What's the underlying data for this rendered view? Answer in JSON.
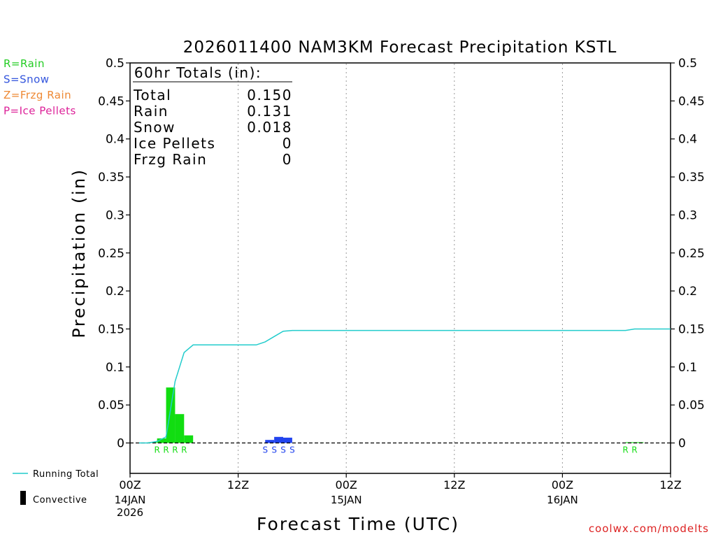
{
  "chart_data": {
    "type": "bar",
    "title": "2026011400 NAM3KM Forecast Precipitation KSTL",
    "xlabel": "Forecast Time (UTC)",
    "ylabel": "Precipitation (in)",
    "ylim": [
      -0.04,
      0.5
    ],
    "xlim_hours": [
      0,
      60
    ],
    "y_ticks": [
      0,
      0.05,
      0.1,
      0.15,
      0.2,
      0.25,
      0.3,
      0.35,
      0.4,
      0.45,
      0.5
    ],
    "y_tick_labels": [
      "0",
      "0.05",
      "0.1",
      "0.15",
      "0.2",
      "0.25",
      "0.3",
      "0.35",
      "0.4",
      "0.45",
      "0.5"
    ],
    "x_ticks": [
      {
        "hour": 0,
        "label": "00Z",
        "sub": [
          "14JAN",
          "2026"
        ]
      },
      {
        "hour": 12,
        "label": "12Z",
        "sub": []
      },
      {
        "hour": 24,
        "label": "00Z",
        "sub": [
          "15JAN"
        ]
      },
      {
        "hour": 36,
        "label": "12Z",
        "sub": []
      },
      {
        "hour": 48,
        "label": "00Z",
        "sub": [
          "16JAN"
        ]
      },
      {
        "hour": 60,
        "label": "12Z",
        "sub": []
      }
    ],
    "totals": {
      "header": "60hr Totals (in):",
      "rows": [
        {
          "label": "Total",
          "value": "0.150"
        },
        {
          "label": "Rain",
          "value": "0.131"
        },
        {
          "label": "Snow",
          "value": "0.018"
        },
        {
          "label": "Ice Pellets",
          "value": "0"
        },
        {
          "label": "Frzg Rain",
          "value": "0"
        }
      ]
    },
    "type_legend": [
      {
        "text": "R=Rain",
        "color": "#22cc22"
      },
      {
        "text": "S=Snow",
        "color": "#3355dd"
      },
      {
        "text": "Z=Frzg Rain",
        "color": "#ee8833"
      },
      {
        "text": "P=Ice Pellets",
        "color": "#dd2299"
      }
    ],
    "series_legend": [
      {
        "name": "Running Total",
        "kind": "line",
        "color": "#22cccc"
      },
      {
        "name": "Convective",
        "kind": "bar",
        "color": "#000000"
      }
    ],
    "bars": [
      {
        "hour": 2,
        "value": 0.001,
        "ptype": "R"
      },
      {
        "hour": 3,
        "value": 0.006,
        "ptype": "R"
      },
      {
        "hour": 4,
        "value": 0.073,
        "ptype": "R"
      },
      {
        "hour": 5,
        "value": 0.038,
        "ptype": "R"
      },
      {
        "hour": 6,
        "value": 0.01,
        "ptype": "R"
      },
      {
        "hour": 15,
        "value": 0.004,
        "ptype": "S"
      },
      {
        "hour": 16,
        "value": 0.008,
        "ptype": "S"
      },
      {
        "hour": 17,
        "value": 0.007,
        "ptype": "S"
      },
      {
        "hour": 55,
        "value": 0.001,
        "ptype": "R"
      },
      {
        "hour": 56,
        "value": 0.001,
        "ptype": "R"
      }
    ],
    "ptype_markers": [
      {
        "hour": 3,
        "text": "R",
        "ptype": "R"
      },
      {
        "hour": 4,
        "text": "R",
        "ptype": "R"
      },
      {
        "hour": 5,
        "text": "R",
        "ptype": "R"
      },
      {
        "hour": 6,
        "text": "R",
        "ptype": "R"
      },
      {
        "hour": 15,
        "text": "S",
        "ptype": "S"
      },
      {
        "hour": 16,
        "text": "S",
        "ptype": "S"
      },
      {
        "hour": 17,
        "text": "S",
        "ptype": "S"
      },
      {
        "hour": 18,
        "text": "S",
        "ptype": "S"
      },
      {
        "hour": 55,
        "text": "R",
        "ptype": "R"
      },
      {
        "hour": 56,
        "text": "R",
        "ptype": "R"
      }
    ],
    "running_total": {
      "x": [
        1,
        2,
        3,
        4,
        5,
        6,
        7,
        8,
        9,
        10,
        11,
        12,
        13,
        14,
        15,
        16,
        17,
        18,
        19,
        20,
        24,
        30,
        36,
        42,
        48,
        54,
        55,
        56,
        57,
        60
      ],
      "y": [
        0,
        0,
        0.002,
        0.008,
        0.081,
        0.119,
        0.129,
        0.129,
        0.129,
        0.129,
        0.129,
        0.129,
        0.129,
        0.129,
        0.133,
        0.14,
        0.147,
        0.148,
        0.148,
        0.148,
        0.148,
        0.148,
        0.148,
        0.148,
        0.148,
        0.148,
        0.148,
        0.15,
        0.15,
        0.15
      ]
    },
    "ptype_colors": {
      "R": "#11dd11",
      "S": "#2244ee",
      "Z": "#ee8833",
      "P": "#dd2299"
    },
    "line_color": "#22cccc"
  },
  "footer": {
    "credit": "coolwx.com/modelts"
  }
}
